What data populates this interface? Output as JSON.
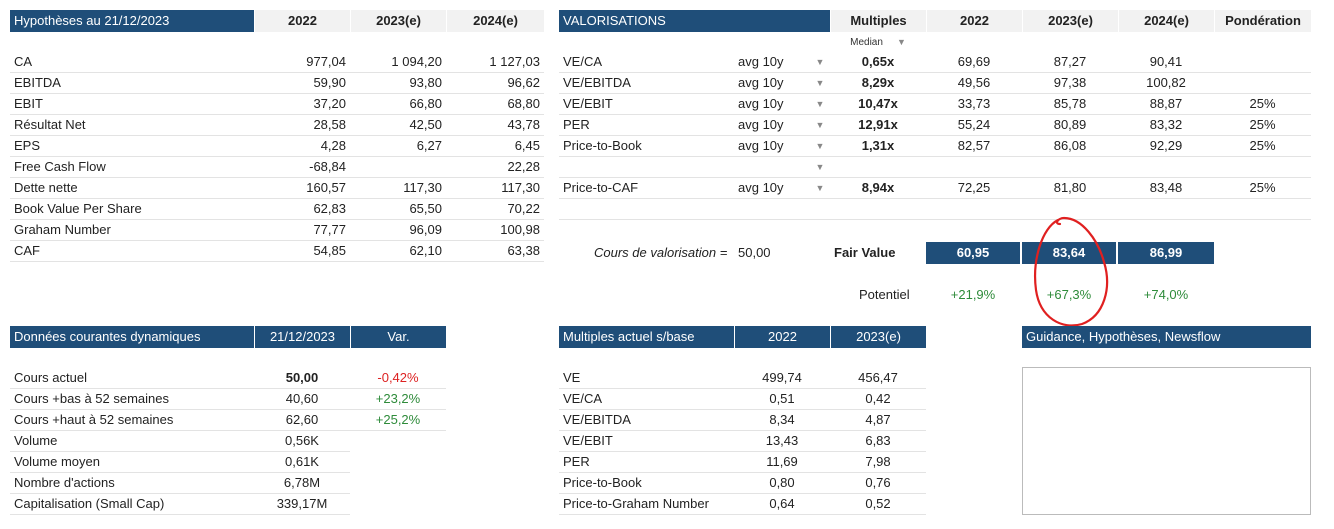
{
  "hypotheses": {
    "title": "Hypothèses au 21/12/2023",
    "cols": [
      "2022",
      "2023(e)",
      "2024(e)"
    ],
    "rows": [
      {
        "label": "CA",
        "v": [
          "977,04",
          "1 094,20",
          "1 127,03"
        ]
      },
      {
        "label": "EBITDA",
        "v": [
          "59,90",
          "93,80",
          "96,62"
        ]
      },
      {
        "label": "EBIT",
        "v": [
          "37,20",
          "66,80",
          "68,80"
        ]
      },
      {
        "label": "Résultat Net",
        "v": [
          "28,58",
          "42,50",
          "43,78"
        ]
      },
      {
        "label": "EPS",
        "v": [
          "4,28",
          "6,27",
          "6,45"
        ]
      },
      {
        "label": "Free Cash Flow",
        "v": [
          "-68,84",
          "",
          "22,28"
        ]
      },
      {
        "label": "Dette nette",
        "v": [
          "160,57",
          "117,30",
          "117,30"
        ]
      },
      {
        "label": "Book Value Per Share",
        "v": [
          "62,83",
          "65,50",
          "70,22"
        ]
      },
      {
        "label": "Graham Number",
        "v": [
          "77,77",
          "96,09",
          "100,98"
        ]
      },
      {
        "label": "CAF",
        "v": [
          "54,85",
          "62,10",
          "63,38"
        ]
      }
    ]
  },
  "valorisations": {
    "title": "VALORISATIONS",
    "cols": [
      "Multiples",
      "2022",
      "2023(e)",
      "2024(e)",
      "Pondération"
    ],
    "median_label": "Median",
    "rows": [
      {
        "label": "VE/CA",
        "basis": "avg 10y",
        "mult": "0,65x",
        "v": [
          "69,69",
          "87,27",
          "90,41"
        ],
        "weight": ""
      },
      {
        "label": "VE/EBITDA",
        "basis": "avg 10y",
        "mult": "8,29x",
        "v": [
          "49,56",
          "97,38",
          "100,82"
        ],
        "weight": ""
      },
      {
        "label": "VE/EBIT",
        "basis": "avg 10y",
        "mult": "10,47x",
        "v": [
          "33,73",
          "85,78",
          "88,87"
        ],
        "weight": "25%"
      },
      {
        "label": "PER",
        "basis": "avg 10y",
        "mult": "12,91x",
        "v": [
          "55,24",
          "80,89",
          "83,32"
        ],
        "weight": "25%"
      },
      {
        "label": "Price-to-Book",
        "basis": "avg 10y",
        "mult": "1,31x",
        "v": [
          "82,57",
          "86,08",
          "92,29"
        ],
        "weight": "25%"
      },
      {
        "label": "",
        "basis": "",
        "mult": "",
        "v": [
          "",
          "",
          ""
        ],
        "weight": ""
      },
      {
        "label": "Price-to-CAF",
        "basis": "avg 10y",
        "mult": "8,94x",
        "v": [
          "72,25",
          "81,80",
          "83,48"
        ],
        "weight": "25%"
      }
    ],
    "cours_label": "Cours de valorisation =",
    "cours_value": "50,00",
    "fair_value_label": "Fair Value",
    "fair_values": [
      "60,95",
      "83,64",
      "86,99"
    ],
    "potentiel_label": "Potentiel",
    "potentiels": [
      "+21,9%",
      "+67,3%",
      "+74,0%"
    ]
  },
  "donnees": {
    "title": "Données courantes dynamiques",
    "date": "21/12/2023",
    "var_label": "Var.",
    "rows": [
      {
        "label": "Cours actuel",
        "value": "50,00",
        "var": "-0,42%"
      },
      {
        "label": "Cours +bas à 52 semaines",
        "value": "40,60",
        "var": "+23,2%"
      },
      {
        "label": "Cours +haut à 52 semaines",
        "value": "62,60",
        "var": "+25,2%"
      },
      {
        "label": "Volume",
        "value": "0,56K",
        "var": ""
      },
      {
        "label": "Volume moyen",
        "value": "0,61K",
        "var": ""
      },
      {
        "label": "Nombre d'actions",
        "value": "6,78M",
        "var": ""
      },
      {
        "label": "Capitalisation (Small Cap)",
        "value": "339,17M",
        "var": ""
      }
    ]
  },
  "multiples_actuel": {
    "title": "Multiples actuel s/base",
    "cols": [
      "2022",
      "2023(e)"
    ],
    "rows": [
      {
        "label": "VE",
        "v": [
          "499,74",
          "456,47"
        ]
      },
      {
        "label": "VE/CA",
        "v": [
          "0,51",
          "0,42"
        ]
      },
      {
        "label": "VE/EBITDA",
        "v": [
          "8,34",
          "4,87"
        ]
      },
      {
        "label": "VE/EBIT",
        "v": [
          "13,43",
          "6,83"
        ]
      },
      {
        "label": "PER",
        "v": [
          "11,69",
          "7,98"
        ]
      },
      {
        "label": "Price-to-Book",
        "v": [
          "0,80",
          "0,76"
        ]
      },
      {
        "label": "Price-to-Graham Number",
        "v": [
          "0,64",
          "0,52"
        ]
      }
    ]
  },
  "guidance": {
    "title": "Guidance, Hypothèses, Newsflow"
  },
  "colors": {
    "header": "#1f4e79",
    "positive": "#2e8b3a",
    "negative": "#dd2222",
    "annotation": "#e02020"
  }
}
